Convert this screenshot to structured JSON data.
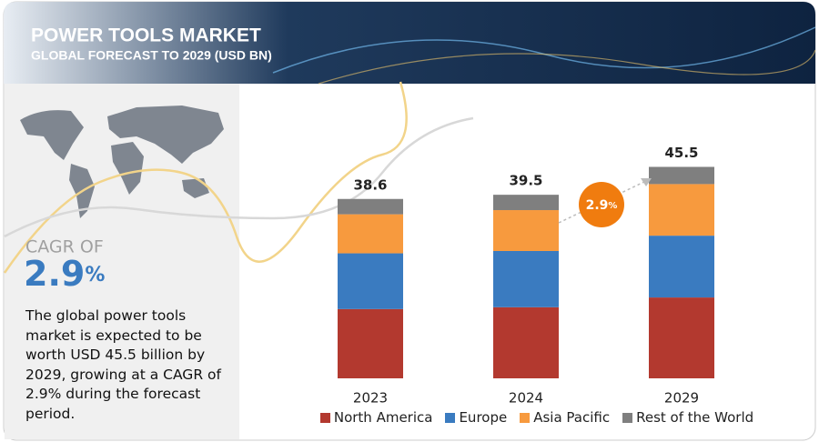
{
  "chart_data": {
    "type": "bar",
    "stacked": true,
    "title": "POWER TOOLS MARKET",
    "subtitle": "GLOBAL FORECAST TO 2029 (USD BN)",
    "categories": [
      "2023",
      "2024",
      "2029"
    ],
    "series": [
      {
        "name": "North America",
        "color": "#b3392f",
        "values": [
          14.9,
          15.3,
          17.4
        ]
      },
      {
        "name": "Europe",
        "color": "#3a7bc0",
        "values": [
          12.0,
          12.1,
          13.3
        ]
      },
      {
        "name": "Asia Pacific",
        "color": "#f79a3e",
        "values": [
          8.4,
          8.8,
          11.1
        ]
      },
      {
        "name": "Rest of the World",
        "color": "#7f7f7f",
        "values": [
          3.3,
          3.3,
          3.7
        ]
      }
    ],
    "totals": [
      38.6,
      39.5,
      45.5
    ],
    "growth_bubble": {
      "value": "2.9",
      "unit": "%"
    },
    "cagr": {
      "label": "CAGR OF",
      "value": "2.9",
      "unit": "%"
    },
    "description": "The global power tools market is expected to be worth USD 45.5 billion by 2029, growing at a CAGR of 2.9% during the forecast period."
  }
}
